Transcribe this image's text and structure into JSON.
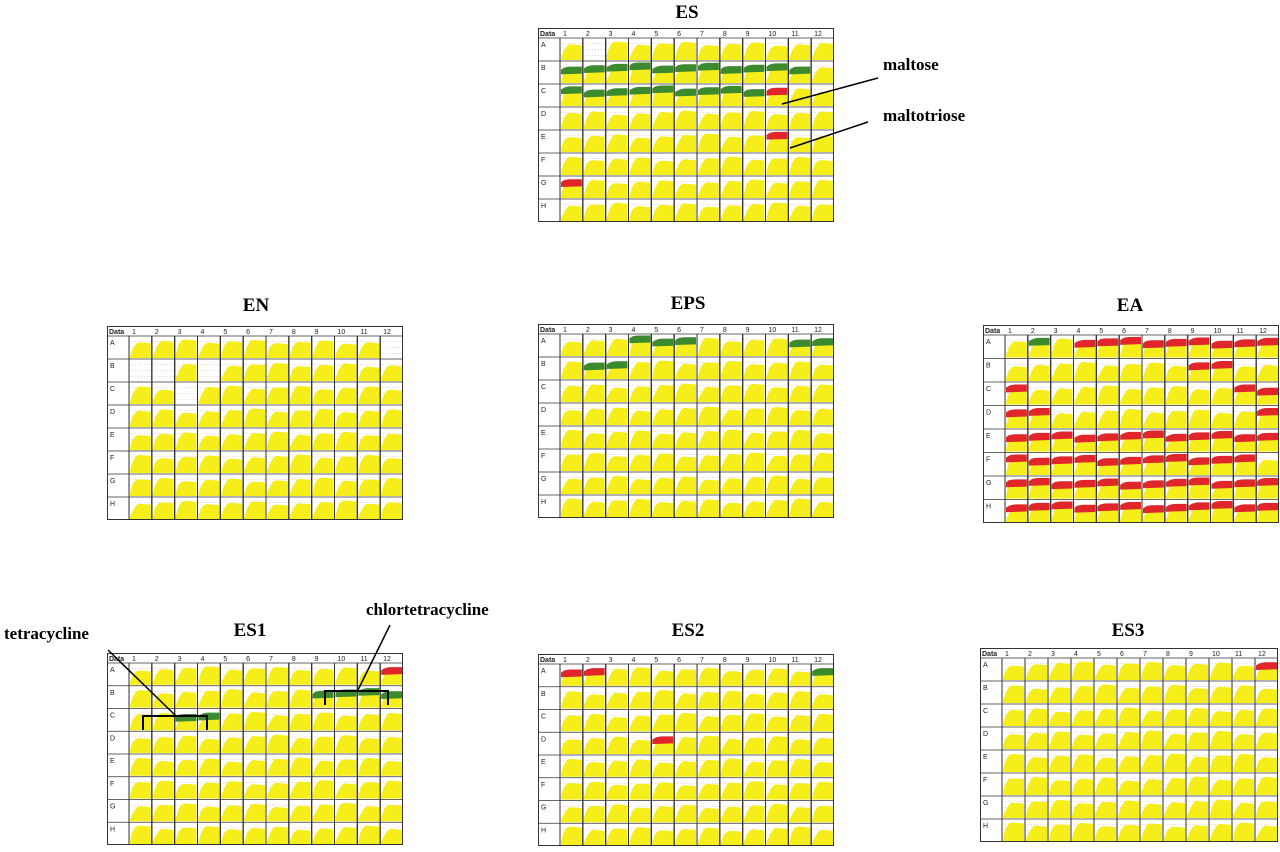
{
  "colors": {
    "growth": "#f5ee1a",
    "positive_red": "#e0262b",
    "positive_green": "#3b8a2e",
    "grid": "#d88a8a",
    "border": "#333333"
  },
  "plate_header": {
    "corner": "Data",
    "columns": [
      "1",
      "2",
      "3",
      "4",
      "5",
      "6",
      "7",
      "8",
      "9",
      "10",
      "11",
      "12"
    ],
    "rows": [
      "A",
      "B",
      "C",
      "D",
      "E",
      "F",
      "G",
      "H"
    ]
  },
  "plates": [
    {
      "title": "ES",
      "grid": [
        "010000000000",
        "000000000000",
        "000000000000",
        "000000000000",
        "000000000000",
        "000000000000",
        "000000000000",
        "000000000000"
      ],
      "red": [
        "C10",
        "E10",
        "G1"
      ],
      "green": [
        "B1",
        "B2",
        "B3",
        "B4",
        "B5",
        "B6",
        "B7",
        "B8",
        "B9",
        "B10",
        "B11",
        "C1",
        "C2",
        "C3",
        "C4",
        "C5",
        "C6",
        "C7",
        "C8",
        "C9"
      ]
    },
    {
      "title": "EN",
      "grid": [
        "000000000001",
        "110100000000",
        "001000000000",
        "000000000000",
        "000000000000",
        "000000000000",
        "000000000000",
        "000000000000"
      ],
      "red": [],
      "green": []
    },
    {
      "title": "EPS",
      "grid": [
        "000000000000",
        "000000000000",
        "000000000000",
        "000000000000",
        "000000000000",
        "000000000000",
        "000000000000",
        "000000000000"
      ],
      "red": [],
      "green": [
        "A4",
        "A5",
        "A6",
        "A11",
        "A12",
        "B2",
        "B3"
      ]
    },
    {
      "title": "EA",
      "grid": [
        "000000000000",
        "000000000000",
        "000000000000",
        "000000000000",
        "000000000000",
        "000000000000",
        "000000000000",
        "000000000000"
      ],
      "red": [
        "A4",
        "A5",
        "A6",
        "A7",
        "A8",
        "A9",
        "A10",
        "A11",
        "A12",
        "B9",
        "B10",
        "C1",
        "C11",
        "C12",
        "D1",
        "D2",
        "D12",
        "E1",
        "E2",
        "E3",
        "E4",
        "E5",
        "E6",
        "E7",
        "E8",
        "E9",
        "E10",
        "E11",
        "E12",
        "F1",
        "F2",
        "F3",
        "F4",
        "F5",
        "F6",
        "F7",
        "F8",
        "F9",
        "F10",
        "F11",
        "G1",
        "G2",
        "G3",
        "G4",
        "G5",
        "G6",
        "G7",
        "G8",
        "G9",
        "G10",
        "G11",
        "G12",
        "H1",
        "H2",
        "H3",
        "H4",
        "H5",
        "H6",
        "H7",
        "H8",
        "H9",
        "H10",
        "H11",
        "H12"
      ],
      "green": [
        "A2"
      ]
    },
    {
      "title": "ES1",
      "grid": [
        "000000000000",
        "000000000000",
        "000000000000",
        "000000000000",
        "000000000000",
        "000000000000",
        "000000000000",
        "000000000000"
      ],
      "red": [
        "A12"
      ],
      "green": [
        "B9",
        "B10",
        "B11",
        "B12",
        "C3",
        "C4"
      ]
    },
    {
      "title": "ES2",
      "grid": [
        "000000000000",
        "000000000000",
        "000000000000",
        "000000000000",
        "000000000000",
        "000000000000",
        "000000000000",
        "000000000000"
      ],
      "red": [
        "A1",
        "A2",
        "D5"
      ],
      "green": [
        "A12"
      ]
    },
    {
      "title": "ES3",
      "grid": [
        "000000000000",
        "000000000000",
        "000000000000",
        "000000000000",
        "000000000000",
        "000000000000",
        "000000000000",
        "000000000000"
      ],
      "red": [
        "A12"
      ],
      "green": []
    }
  ],
  "annotations": {
    "maltose": "maltose",
    "maltotriose": "maltotriose",
    "tetracycline": "tetracycline",
    "chlortetracycline": "chlortetracycline"
  }
}
